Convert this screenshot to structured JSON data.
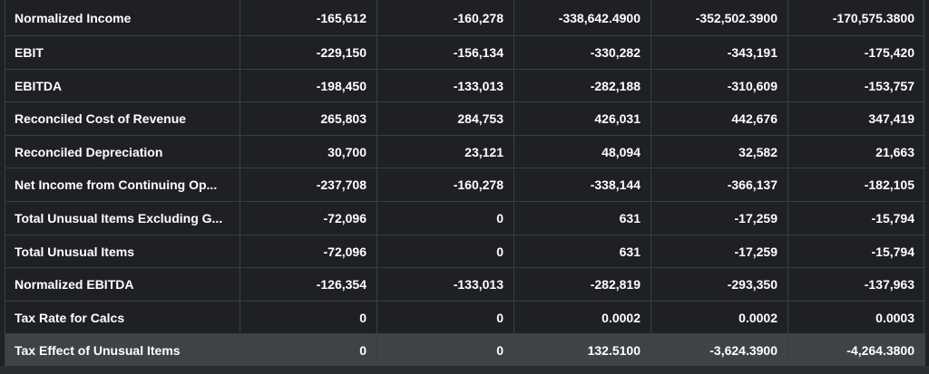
{
  "table": {
    "rows": [
      {
        "label": "Normalized Income",
        "values": [
          "-165,612",
          "-160,278",
          "-338,642.4900",
          "-352,502.3900",
          "-170,575.3800"
        ]
      },
      {
        "label": "EBIT",
        "values": [
          "-229,150",
          "-156,134",
          "-330,282",
          "-343,191",
          "-175,420"
        ]
      },
      {
        "label": "EBITDA",
        "values": [
          "-198,450",
          "-133,013",
          "-282,188",
          "-310,609",
          "-153,757"
        ]
      },
      {
        "label": "Reconciled Cost of Revenue",
        "values": [
          "265,803",
          "284,753",
          "426,031",
          "442,676",
          "347,419"
        ]
      },
      {
        "label": "Reconciled Depreciation",
        "values": [
          "30,700",
          "23,121",
          "48,094",
          "32,582",
          "21,663"
        ]
      },
      {
        "label": "Net Income from Continuing Op...",
        "values": [
          "-237,708",
          "-160,278",
          "-338,144",
          "-366,137",
          "-182,105"
        ]
      },
      {
        "label": "Total Unusual Items Excluding G...",
        "values": [
          "-72,096",
          "0",
          "631",
          "-17,259",
          "-15,794"
        ]
      },
      {
        "label": "Total Unusual Items",
        "values": [
          "-72,096",
          "0",
          "631",
          "-17,259",
          "-15,794"
        ]
      },
      {
        "label": "Normalized EBITDA",
        "values": [
          "-126,354",
          "-133,013",
          "-282,819",
          "-293,350",
          "-137,963"
        ]
      },
      {
        "label": "Tax Rate for Calcs",
        "values": [
          "0",
          "0",
          "0.0002",
          "0.0002",
          "0.0003"
        ]
      },
      {
        "label": "Tax Effect of Unusual Items",
        "values": [
          "0",
          "0",
          "132.5100",
          "-3,624.3900",
          "-4,264.3800"
        ]
      }
    ]
  }
}
